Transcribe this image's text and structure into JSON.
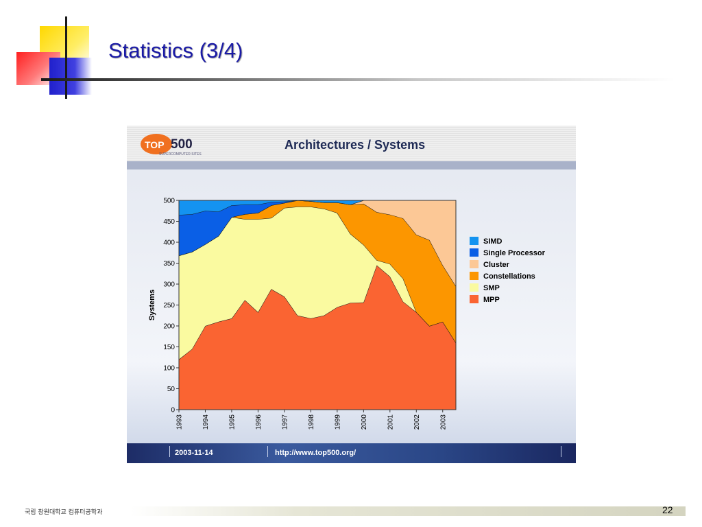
{
  "slide": {
    "title": "Statistics (3/4)",
    "footer_text": "국립 창원대학교 컴퓨터공학과",
    "page_number": "22"
  },
  "panel": {
    "heading": "Architectures / Systems",
    "logo_top": "TOP",
    "logo_num": "500",
    "logo_sub": "SUPERCOMPUTER SITES",
    "footer_date": "2003-11-14",
    "footer_url": "http://www.top500.org/"
  },
  "colors": {
    "title": "#1a1aa6",
    "SIMD": "#1493f0",
    "Single Processor": "#0a5fe6",
    "Cluster": "#fcc896",
    "Constellations": "#fc9600",
    "SMP": "#fafaa0",
    "MPP": "#fa6432"
  },
  "chart_data": {
    "type": "area",
    "stacked": true,
    "title": "Architectures / Systems",
    "xlabel": "",
    "ylabel": "Systems",
    "ylim": [
      0,
      500
    ],
    "yticks": [
      "0",
      "50",
      "100",
      "150",
      "200",
      "250",
      "300",
      "350",
      "400",
      "450",
      "500"
    ],
    "x": [
      "1993-06",
      "1993-11",
      "1994-06",
      "1994-11",
      "1995-06",
      "1995-11",
      "1996-06",
      "1996-11",
      "1997-06",
      "1997-11",
      "1998-06",
      "1998-11",
      "1999-06",
      "1999-11",
      "2000-06",
      "2000-11",
      "2001-06",
      "2001-11",
      "2002-06",
      "2002-11",
      "2003-06",
      "2003-11"
    ],
    "xticks": [
      "1993",
      "1994",
      "1995",
      "1996",
      "1997",
      "1998",
      "1999",
      "2000",
      "2001",
      "2002",
      "2003"
    ],
    "legend_position": "right",
    "series": [
      {
        "name": "MPP",
        "values": [
          120,
          145,
          200,
          210,
          218,
          262,
          233,
          288,
          270,
          225,
          218,
          225,
          245,
          255,
          256,
          345,
          318,
          258,
          233,
          200,
          210,
          160
        ]
      },
      {
        "name": "SMP",
        "values": [
          248,
          232,
          195,
          205,
          242,
          193,
          222,
          170,
          212,
          260,
          267,
          255,
          225,
          165,
          138,
          12,
          30,
          55,
          0,
          0,
          0,
          0
        ]
      },
      {
        "name": "Constellations",
        "values": [
          0,
          0,
          0,
          0,
          0,
          12,
          15,
          30,
          12,
          15,
          13,
          15,
          25,
          70,
          98,
          115,
          118,
          144,
          185,
          205,
          135,
          135
        ]
      },
      {
        "name": "Cluster",
        "values": [
          0,
          0,
          0,
          0,
          0,
          0,
          0,
          0,
          0,
          0,
          0,
          0,
          0,
          0,
          8,
          28,
          34,
          43,
          82,
          95,
          155,
          205
        ]
      },
      {
        "name": "Single Processor",
        "values": [
          97,
          90,
          80,
          58,
          28,
          23,
          20,
          8,
          3,
          0,
          0,
          0,
          0,
          0,
          0,
          0,
          0,
          0,
          0,
          0,
          0,
          0
        ]
      },
      {
        "name": "SIMD",
        "values": [
          35,
          33,
          25,
          27,
          12,
          10,
          10,
          4,
          3,
          0,
          2,
          5,
          5,
          10,
          0,
          0,
          0,
          0,
          0,
          0,
          0,
          0
        ]
      }
    ],
    "legend": [
      "SIMD",
      "Single Processor",
      "Cluster",
      "Constellations",
      "SMP",
      "MPP"
    ]
  }
}
